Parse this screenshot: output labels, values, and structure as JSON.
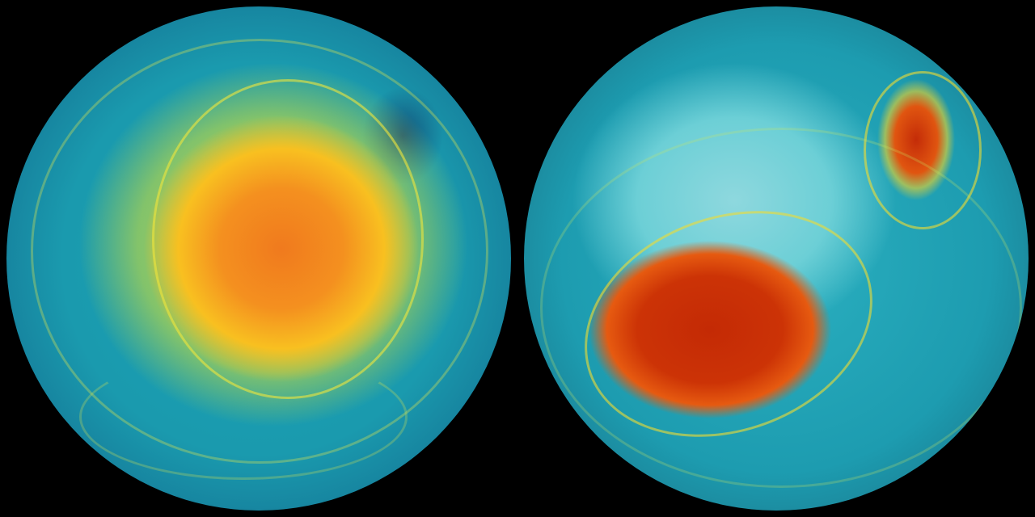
{
  "image": {
    "subject": "two-globes",
    "globes": [
      {
        "id": "left",
        "colors": {
          "core": "#f07a1e",
          "ring": "#f8c020",
          "ocean": "#1ba3b5",
          "edge": "#0d3f60"
        }
      },
      {
        "id": "right",
        "colors": {
          "core": "#c42a05",
          "ice": "#8ed8de",
          "ocean": "#2bb0c0",
          "edge": "#0a1a22"
        }
      }
    ],
    "background": "#000000"
  }
}
